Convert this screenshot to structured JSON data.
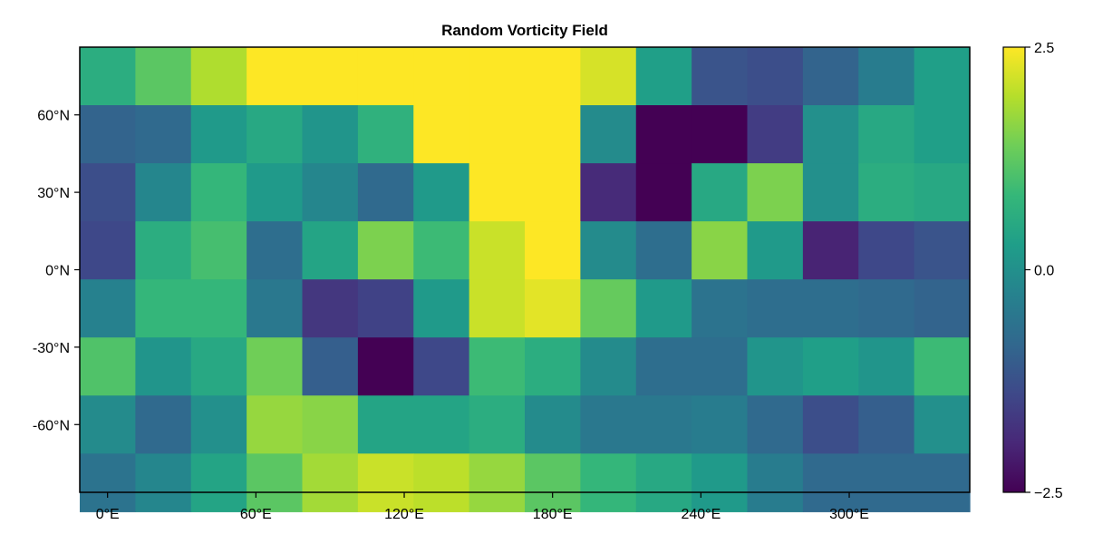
{
  "chart_data": {
    "type": "heatmap",
    "title": "Random Vorticity Field",
    "xlabel": "",
    "ylabel": "",
    "x_tick_labels": [
      "0°E",
      "60°E",
      "120°E",
      "180°E",
      "240°E",
      "300°E"
    ],
    "x_tick_values": [
      0,
      60,
      120,
      180,
      240,
      300
    ],
    "y_tick_labels": [
      "60°N",
      "30°N",
      "0°N",
      "-30°N",
      "-60°N"
    ],
    "y_tick_values": [
      60,
      30,
      0,
      -30,
      -60
    ],
    "xlim": [
      -11.25,
      348.75
    ],
    "ylim": [
      -86.25,
      86.25
    ],
    "x": [
      0,
      22.5,
      45,
      67.5,
      90,
      112.5,
      135,
      157.5,
      180,
      202.5,
      225,
      247.5,
      270,
      292.5,
      315,
      337.5
    ],
    "y": [
      75,
      52.5,
      30,
      7.5,
      -15,
      -37.5,
      -60,
      -82.5
    ],
    "values": [
      [
        0.6,
        1.2,
        1.9,
        2.5,
        2.5,
        2.5,
        2.5,
        2.5,
        2.5,
        2.2,
        0.3,
        -1.2,
        -1.3,
        -0.9,
        -0.4,
        0.3
      ],
      [
        -0.9,
        -0.8,
        0.2,
        0.5,
        0.1,
        0.7,
        2.5,
        2.5,
        2.5,
        -0.1,
        -2.5,
        -2.5,
        -1.6,
        0.0,
        0.5,
        0.3
      ],
      [
        -1.3,
        -0.2,
        0.8,
        0.2,
        -0.2,
        -0.8,
        0.2,
        2.5,
        2.5,
        -1.9,
        -2.5,
        0.5,
        1.5,
        0.0,
        0.6,
        0.5
      ],
      [
        -1.4,
        0.6,
        1.0,
        -0.7,
        0.4,
        1.5,
        0.9,
        2.1,
        2.5,
        -0.1,
        -0.7,
        1.6,
        0.2,
        -2.0,
        -1.4,
        -1.2
      ],
      [
        -0.3,
        0.8,
        0.8,
        -0.5,
        -1.7,
        -1.5,
        0.2,
        2.1,
        2.3,
        1.3,
        0.2,
        -0.6,
        -0.7,
        -0.7,
        -0.8,
        -0.9
      ],
      [
        1.1,
        0.1,
        0.5,
        1.4,
        -1.0,
        -2.5,
        -1.4,
        0.9,
        0.6,
        -0.1,
        -0.7,
        -0.7,
        0.1,
        0.3,
        0.1,
        0.9
      ],
      [
        -0.1,
        -0.8,
        0.0,
        1.7,
        1.6,
        0.4,
        0.4,
        0.6,
        -0.1,
        -0.5,
        -0.5,
        -0.4,
        -0.8,
        -1.3,
        -1.0,
        0.0
      ],
      [
        -0.6,
        -0.2,
        0.4,
        1.2,
        1.8,
        2.1,
        2.0,
        1.7,
        1.2,
        0.8,
        0.5,
        0.2,
        -0.4,
        -0.8,
        -0.8,
        -0.8
      ]
    ],
    "colormap": "viridis",
    "clim": [
      -2.5,
      2.5
    ],
    "colorbar": {
      "position": "right",
      "tick_labels": [
        "2.5",
        "0.0",
        "−2.5"
      ],
      "tick_values": [
        2.5,
        0.0,
        -2.5
      ]
    },
    "grid": false,
    "colors": {
      "viridis_stops": [
        "#440154",
        "#482878",
        "#3e4989",
        "#31688e",
        "#26828e",
        "#1f9e89",
        "#35b779",
        "#6ece58",
        "#b5de2b",
        "#fde725"
      ]
    }
  }
}
